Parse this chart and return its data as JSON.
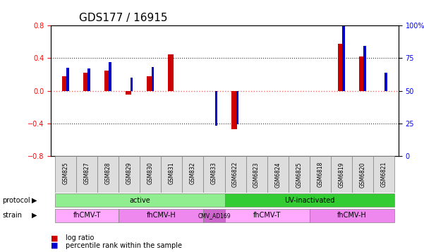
{
  "title": "GDS177 / 16915",
  "samples": [
    "GSM825",
    "GSM827",
    "GSM828",
    "GSM829",
    "GSM830",
    "GSM831",
    "GSM832",
    "GSM833",
    "GSM6822",
    "GSM6823",
    "GSM6824",
    "GSM6825",
    "GSM6818",
    "GSM6819",
    "GSM6820",
    "GSM6821"
  ],
  "log_ratio": [
    0.18,
    0.22,
    0.25,
    -0.05,
    0.18,
    0.44,
    0.0,
    0.0,
    -0.47,
    0.0,
    0.0,
    0.0,
    0.0,
    0.57,
    0.42,
    0.0
  ],
  "pct_rank": [
    0.28,
    0.27,
    0.35,
    0.16,
    0.29,
    0.0,
    0.0,
    -0.43,
    -0.41,
    0.0,
    0.0,
    0.0,
    0.0,
    0.79,
    0.55,
    0.22
  ],
  "ylim": [
    -0.8,
    0.8
  ],
  "yticks_left": [
    -0.8,
    -0.4,
    0.0,
    0.4,
    0.8
  ],
  "yticks_right": [
    0,
    25,
    50,
    75,
    100
  ],
  "protocol_groups": [
    {
      "label": "active",
      "start": 0,
      "end": 8,
      "color": "#90ee90"
    },
    {
      "label": "UV-inactivated",
      "start": 8,
      "end": 16,
      "color": "#33cc33"
    }
  ],
  "strain_groups": [
    {
      "label": "fhCMV-T",
      "start": 0,
      "end": 3,
      "color": "#ffaaff"
    },
    {
      "label": "fhCMV-H",
      "start": 3,
      "end": 7,
      "color": "#ee88ee"
    },
    {
      "label": "CMV_AD169",
      "start": 7,
      "end": 8,
      "color": "#cc66cc"
    },
    {
      "label": "fhCMV-T",
      "start": 8,
      "end": 12,
      "color": "#ffaaff"
    },
    {
      "label": "fhCMV-H",
      "start": 12,
      "end": 16,
      "color": "#ee88ee"
    }
  ],
  "bar_color_red": "#cc0000",
  "bar_color_blue": "#0000cc",
  "zero_line_color": "#ff6666",
  "dotted_line_color": "#333333",
  "title_fontsize": 11,
  "tick_fontsize": 7,
  "label_fontsize": 8
}
